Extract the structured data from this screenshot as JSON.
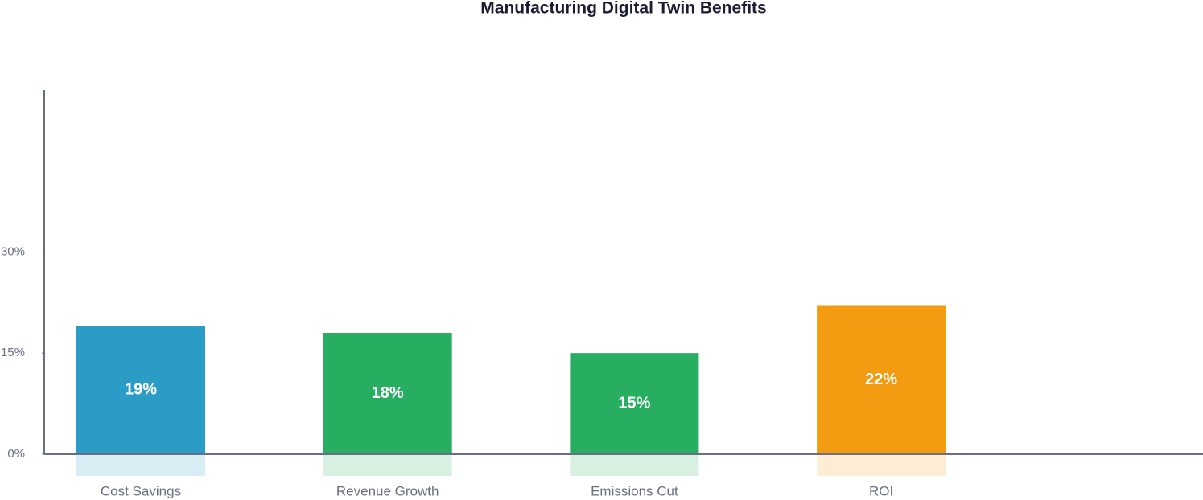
{
  "chart_data": {
    "type": "bar",
    "title": "Manufacturing Digital Twin Benefits",
    "categories": [
      "Cost Savings",
      "Revenue Growth",
      "Emissions Cut",
      "ROI"
    ],
    "values": [
      19,
      18,
      15,
      22
    ],
    "value_labels": [
      "19%",
      "18%",
      "15%",
      "22%"
    ],
    "colors": [
      "#2b9cc6",
      "#27ae60",
      "#27ae60",
      "#f39c12"
    ],
    "ylim": [
      0,
      54
    ],
    "yticks": [
      {
        "value": 0,
        "label": "0%"
      },
      {
        "value": 15,
        "label": "15%"
      },
      {
        "value": 30,
        "label": "30%"
      }
    ]
  }
}
